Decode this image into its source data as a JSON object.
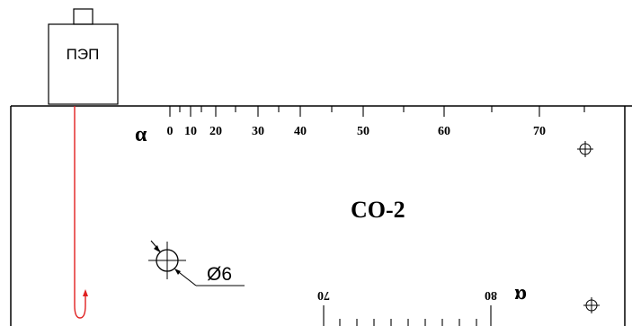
{
  "probe": {
    "label": "ПЭП"
  },
  "block": {
    "title": "CO-2"
  },
  "hole": {
    "diameter_label": "Ø6"
  },
  "top_scale": {
    "symbol": "α",
    "labels": [
      "0",
      "10",
      "20",
      "30",
      "40",
      "50",
      "60",
      "70"
    ]
  },
  "bottom_scale": {
    "symbol": "α",
    "labels": [
      "70",
      "80"
    ]
  },
  "colors": {
    "line": "#000000",
    "beam": "#e02020",
    "background": "#ffffff"
  }
}
